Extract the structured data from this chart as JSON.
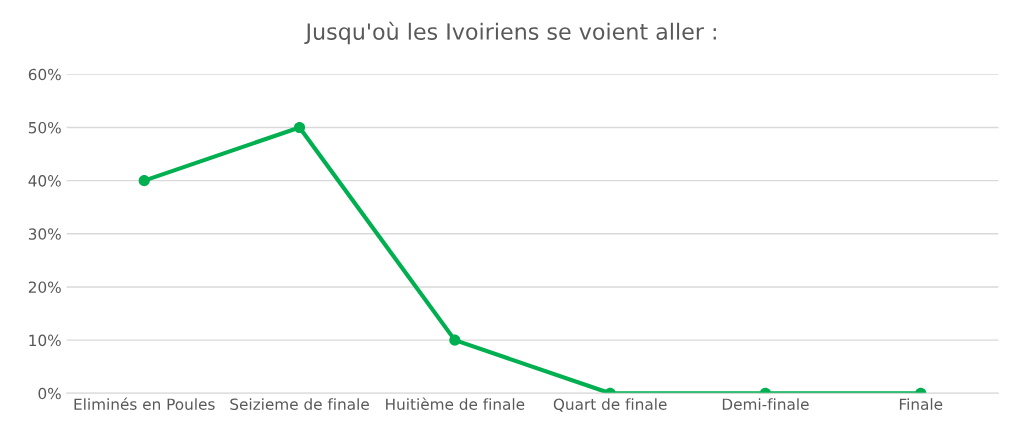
{
  "chart_data": {
    "type": "line",
    "title": "Jusqu'où les Ivoiriens se voient aller :",
    "categories": [
      "Eliminés en Poules",
      "Seizieme de finale",
      "Huitième de finale",
      "Quart de finale",
      "Demi-finale",
      "Finale"
    ],
    "series": [
      {
        "color": "#00b050",
        "values": [
          40,
          50,
          10,
          0,
          0,
          0
        ]
      }
    ],
    "ylim": [
      0,
      60
    ],
    "yticks": [
      {
        "value": 0,
        "label": "0%"
      },
      {
        "value": 10,
        "label": "10%"
      },
      {
        "value": 20,
        "label": "20%"
      },
      {
        "value": 30,
        "label": "30%"
      },
      {
        "value": 40,
        "label": "40%"
      },
      {
        "value": 50,
        "label": "50%"
      },
      {
        "value": 60,
        "label": "60%"
      }
    ],
    "grid": "y",
    "marker": "circle",
    "line_style": "solid",
    "legend": false
  }
}
